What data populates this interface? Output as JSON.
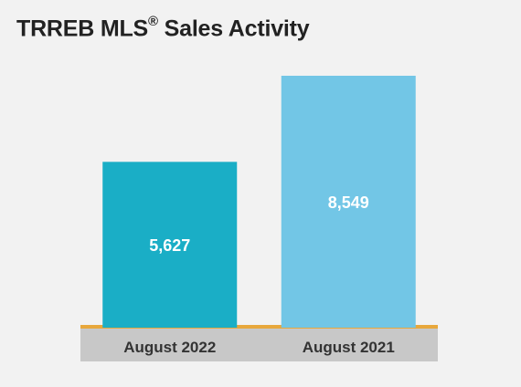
{
  "chart_data": {
    "type": "bar",
    "title": {
      "main": "TRREB MLS",
      "mark": "®",
      "rest": " Sales Activity"
    },
    "xlabel": "",
    "ylabel": "",
    "categories": [
      "August 2022",
      "August 2021"
    ],
    "values": [
      5627,
      8549
    ],
    "value_labels": [
      "5,627",
      "8,549"
    ],
    "colors": [
      "#1aaec6",
      "#72c6e6"
    ],
    "axis_line_color": "#e8a83c",
    "category_band_color": "#c8c8c8",
    "grid": false,
    "legend": "none"
  }
}
